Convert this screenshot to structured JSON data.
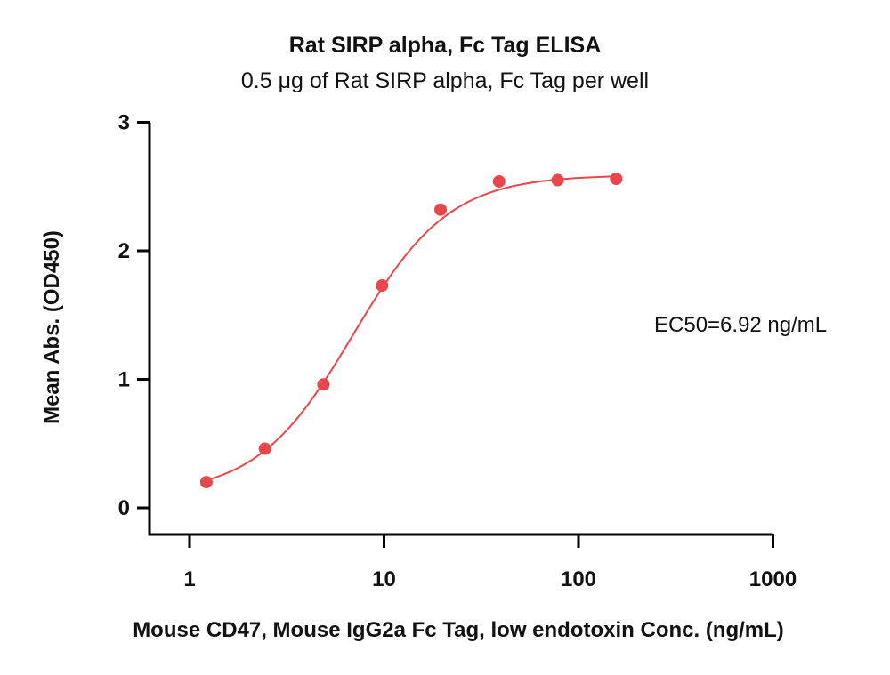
{
  "chart_data": {
    "type": "scatter",
    "title": "Rat SIRP alpha, Fc Tag ELISA",
    "subtitle": "0.5 μg of Rat SIRP alpha, Fc Tag per well",
    "xlabel": "Mouse CD47, Mouse IgG2a Fc Tag, low endotoxin Conc. (ng/mL)",
    "ylabel": "Mean Abs. (OD450)",
    "x_scale": "log",
    "xlim": [
      0.5,
      1000
    ],
    "ylim": [
      -0.2,
      3
    ],
    "x_ticks": [
      1,
      10,
      100,
      1000
    ],
    "x_tick_labels": [
      "1",
      "10",
      "100",
      "1000"
    ],
    "y_ticks": [
      0,
      1,
      2,
      3
    ],
    "y_tick_labels": [
      "0",
      "1",
      "2",
      "3"
    ],
    "grid": false,
    "annotation": "EC50=6.92 ng/mL",
    "series": [
      {
        "color": "#e8474c",
        "x": [
          1.22,
          2.44,
          4.88,
          9.77,
          19.53,
          39.06,
          78.13,
          156.25
        ],
        "y": [
          0.2,
          0.46,
          0.96,
          1.73,
          2.32,
          2.54,
          2.55,
          2.56
        ]
      }
    ],
    "fit": {
      "bottom": 0.1,
      "top": 2.59,
      "ec50": 6.92,
      "hill": 1.75
    }
  }
}
